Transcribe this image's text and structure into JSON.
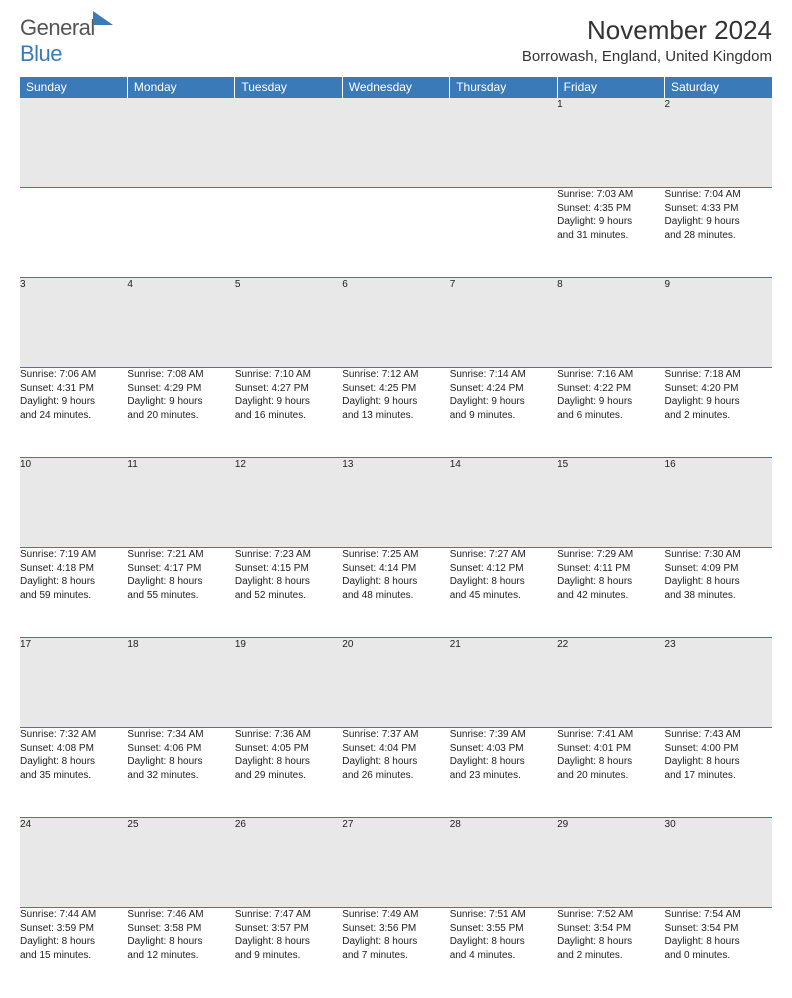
{
  "logo": {
    "text1": "General",
    "text2": "Blue"
  },
  "title": "November 2024",
  "location": "Borrowash, England, United Kingdom",
  "day_headers": [
    "Sunday",
    "Monday",
    "Tuesday",
    "Wednesday",
    "Thursday",
    "Friday",
    "Saturday"
  ],
  "colors": {
    "header_bg": "#3a7ab8",
    "header_text": "#ffffff",
    "daynum_bg": "#e8e8e8",
    "border": "#3a7ab8",
    "text": "#222222",
    "logo_gray": "#555555",
    "logo_blue": "#3a7ab8"
  },
  "fonts": {
    "title_size_pt": 26,
    "location_size_pt": 15,
    "header_size_pt": 12,
    "daynum_size_pt": 11,
    "cell_size_pt": 10
  },
  "weeks": [
    {
      "nums": [
        "",
        "",
        "",
        "",
        "",
        "1",
        "2"
      ],
      "cells": [
        null,
        null,
        null,
        null,
        null,
        {
          "sr": "Sunrise: 7:03 AM",
          "ss": "Sunset: 4:35 PM",
          "d1": "Daylight: 9 hours",
          "d2": "and 31 minutes."
        },
        {
          "sr": "Sunrise: 7:04 AM",
          "ss": "Sunset: 4:33 PM",
          "d1": "Daylight: 9 hours",
          "d2": "and 28 minutes."
        }
      ]
    },
    {
      "nums": [
        "3",
        "4",
        "5",
        "6",
        "7",
        "8",
        "9"
      ],
      "cells": [
        {
          "sr": "Sunrise: 7:06 AM",
          "ss": "Sunset: 4:31 PM",
          "d1": "Daylight: 9 hours",
          "d2": "and 24 minutes."
        },
        {
          "sr": "Sunrise: 7:08 AM",
          "ss": "Sunset: 4:29 PM",
          "d1": "Daylight: 9 hours",
          "d2": "and 20 minutes."
        },
        {
          "sr": "Sunrise: 7:10 AM",
          "ss": "Sunset: 4:27 PM",
          "d1": "Daylight: 9 hours",
          "d2": "and 16 minutes."
        },
        {
          "sr": "Sunrise: 7:12 AM",
          "ss": "Sunset: 4:25 PM",
          "d1": "Daylight: 9 hours",
          "d2": "and 13 minutes."
        },
        {
          "sr": "Sunrise: 7:14 AM",
          "ss": "Sunset: 4:24 PM",
          "d1": "Daylight: 9 hours",
          "d2": "and 9 minutes."
        },
        {
          "sr": "Sunrise: 7:16 AM",
          "ss": "Sunset: 4:22 PM",
          "d1": "Daylight: 9 hours",
          "d2": "and 6 minutes."
        },
        {
          "sr": "Sunrise: 7:18 AM",
          "ss": "Sunset: 4:20 PM",
          "d1": "Daylight: 9 hours",
          "d2": "and 2 minutes."
        }
      ]
    },
    {
      "nums": [
        "10",
        "11",
        "12",
        "13",
        "14",
        "15",
        "16"
      ],
      "cells": [
        {
          "sr": "Sunrise: 7:19 AM",
          "ss": "Sunset: 4:18 PM",
          "d1": "Daylight: 8 hours",
          "d2": "and 59 minutes."
        },
        {
          "sr": "Sunrise: 7:21 AM",
          "ss": "Sunset: 4:17 PM",
          "d1": "Daylight: 8 hours",
          "d2": "and 55 minutes."
        },
        {
          "sr": "Sunrise: 7:23 AM",
          "ss": "Sunset: 4:15 PM",
          "d1": "Daylight: 8 hours",
          "d2": "and 52 minutes."
        },
        {
          "sr": "Sunrise: 7:25 AM",
          "ss": "Sunset: 4:14 PM",
          "d1": "Daylight: 8 hours",
          "d2": "and 48 minutes."
        },
        {
          "sr": "Sunrise: 7:27 AM",
          "ss": "Sunset: 4:12 PM",
          "d1": "Daylight: 8 hours",
          "d2": "and 45 minutes."
        },
        {
          "sr": "Sunrise: 7:29 AM",
          "ss": "Sunset: 4:11 PM",
          "d1": "Daylight: 8 hours",
          "d2": "and 42 minutes."
        },
        {
          "sr": "Sunrise: 7:30 AM",
          "ss": "Sunset: 4:09 PM",
          "d1": "Daylight: 8 hours",
          "d2": "and 38 minutes."
        }
      ]
    },
    {
      "nums": [
        "17",
        "18",
        "19",
        "20",
        "21",
        "22",
        "23"
      ],
      "cells": [
        {
          "sr": "Sunrise: 7:32 AM",
          "ss": "Sunset: 4:08 PM",
          "d1": "Daylight: 8 hours",
          "d2": "and 35 minutes."
        },
        {
          "sr": "Sunrise: 7:34 AM",
          "ss": "Sunset: 4:06 PM",
          "d1": "Daylight: 8 hours",
          "d2": "and 32 minutes."
        },
        {
          "sr": "Sunrise: 7:36 AM",
          "ss": "Sunset: 4:05 PM",
          "d1": "Daylight: 8 hours",
          "d2": "and 29 minutes."
        },
        {
          "sr": "Sunrise: 7:37 AM",
          "ss": "Sunset: 4:04 PM",
          "d1": "Daylight: 8 hours",
          "d2": "and 26 minutes."
        },
        {
          "sr": "Sunrise: 7:39 AM",
          "ss": "Sunset: 4:03 PM",
          "d1": "Daylight: 8 hours",
          "d2": "and 23 minutes."
        },
        {
          "sr": "Sunrise: 7:41 AM",
          "ss": "Sunset: 4:01 PM",
          "d1": "Daylight: 8 hours",
          "d2": "and 20 minutes."
        },
        {
          "sr": "Sunrise: 7:43 AM",
          "ss": "Sunset: 4:00 PM",
          "d1": "Daylight: 8 hours",
          "d2": "and 17 minutes."
        }
      ]
    },
    {
      "nums": [
        "24",
        "25",
        "26",
        "27",
        "28",
        "29",
        "30"
      ],
      "cells": [
        {
          "sr": "Sunrise: 7:44 AM",
          "ss": "Sunset: 3:59 PM",
          "d1": "Daylight: 8 hours",
          "d2": "and 15 minutes."
        },
        {
          "sr": "Sunrise: 7:46 AM",
          "ss": "Sunset: 3:58 PM",
          "d1": "Daylight: 8 hours",
          "d2": "and 12 minutes."
        },
        {
          "sr": "Sunrise: 7:47 AM",
          "ss": "Sunset: 3:57 PM",
          "d1": "Daylight: 8 hours",
          "d2": "and 9 minutes."
        },
        {
          "sr": "Sunrise: 7:49 AM",
          "ss": "Sunset: 3:56 PM",
          "d1": "Daylight: 8 hours",
          "d2": "and 7 minutes."
        },
        {
          "sr": "Sunrise: 7:51 AM",
          "ss": "Sunset: 3:55 PM",
          "d1": "Daylight: 8 hours",
          "d2": "and 4 minutes."
        },
        {
          "sr": "Sunrise: 7:52 AM",
          "ss": "Sunset: 3:54 PM",
          "d1": "Daylight: 8 hours",
          "d2": "and 2 minutes."
        },
        {
          "sr": "Sunrise: 7:54 AM",
          "ss": "Sunset: 3:54 PM",
          "d1": "Daylight: 8 hours",
          "d2": "and 0 minutes."
        }
      ]
    }
  ]
}
